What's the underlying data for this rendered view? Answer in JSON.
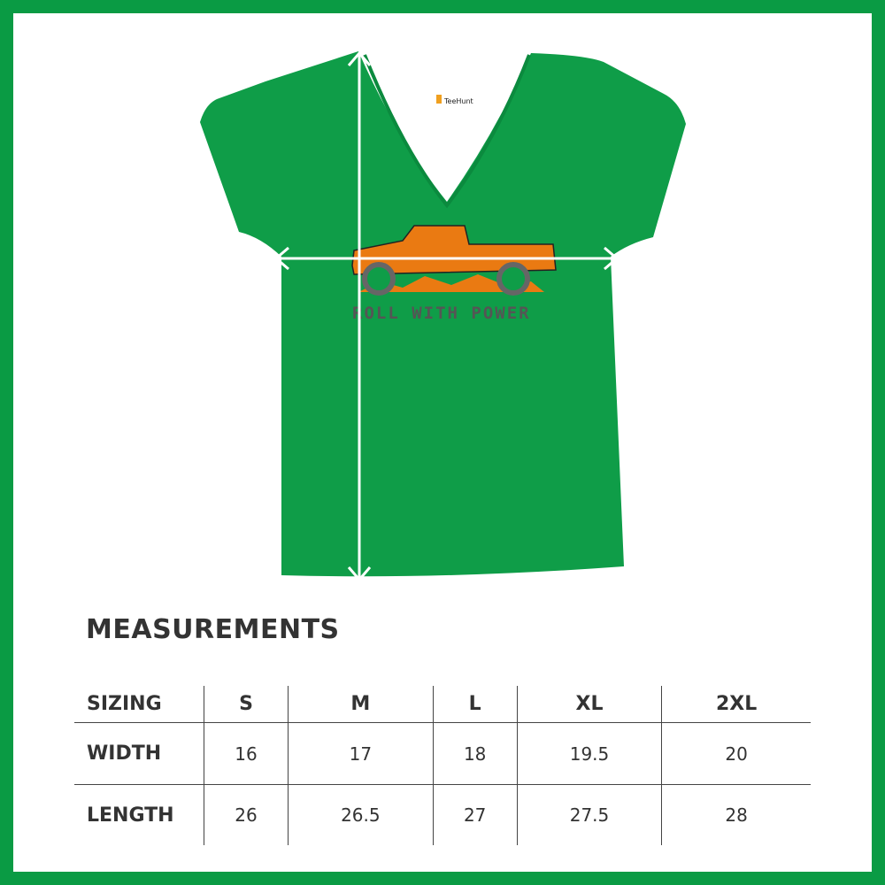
{
  "colors": {
    "border": "#0a9b44",
    "shirt": "#0f9d48",
    "truck": "#ea7a12",
    "text": "#333333"
  },
  "shirt": {
    "brand_label": "TeeHunt",
    "print_text": "ROLL WITH POWER"
  },
  "measurements": {
    "title": "MEASUREMENTS",
    "header": [
      "SIZING",
      "S",
      "M",
      "L",
      "XL",
      "2XL"
    ],
    "rows": [
      {
        "label": "WIDTH",
        "values": [
          "16",
          "17",
          "18",
          "19.5",
          "20"
        ]
      },
      {
        "label": "LENGTH",
        "values": [
          "26",
          "26.5",
          "27",
          "27.5",
          "28"
        ]
      }
    ]
  }
}
